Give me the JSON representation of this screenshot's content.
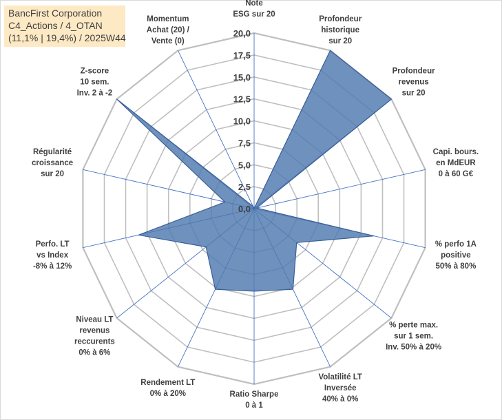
{
  "chart_data": {
    "type": "radar",
    "title": [
      "BancFirst Corporation",
      "C4_Actions / 4_OTAN",
      "(11,1% | 19,4%) / 2025W44"
    ],
    "rmin": 0,
    "rmax": 20,
    "ticks": [
      "0,0",
      "2,5",
      "5,0",
      "7,5",
      "10,0",
      "12,5",
      "15,0",
      "17,5",
      "20,0"
    ],
    "axes": [
      {
        "label": [
          "Note",
          "ESG sur 20"
        ],
        "value": 0
      },
      {
        "label": [
          "Profondeur",
          "historique",
          "sur 20"
        ],
        "value": 20
      },
      {
        "label": [
          "Profondeur",
          "revenus",
          "sur 20"
        ],
        "value": 20
      },
      {
        "label": [
          "Capi. bours.",
          "en MdEUR",
          "0 à 60 G€"
        ],
        "value": 0.3
      },
      {
        "label": [
          "% perfo 1A",
          "positive",
          "50% à 80%"
        ],
        "value": 14
      },
      {
        "label": [
          "% perte max.",
          "sur 1 sem.",
          "Inv. 50% à 20%"
        ],
        "value": 6.2
      },
      {
        "label": [
          "Volatilité LT",
          "Inversée",
          "40% à 0%"
        ],
        "value": 10.2
      },
      {
        "label": [
          "Ratio Sharpe",
          "0 à 1"
        ],
        "value": 9.4
      },
      {
        "label": [
          "Rendement LT",
          "0% à 20%"
        ],
        "value": 10.2
      },
      {
        "label": [
          "Niveau LT",
          "revenus",
          "reccurents",
          "0% à 6%"
        ],
        "value": 7
      },
      {
        "label": [
          "Perfo. LT",
          "vs Index",
          "-8% à 12%"
        ],
        "value": 13.5
      },
      {
        "label": [
          "Régularité",
          "croissance",
          "sur 20"
        ],
        "value": 3.4
      },
      {
        "label": [
          "Z-score",
          "10 sem.",
          "Inv. 2 à -2"
        ],
        "value": 20
      },
      {
        "label": [
          "Momentum",
          "Achat (20) /",
          "Vente (0)"
        ],
        "value": 0.3
      }
    ],
    "colors": {
      "fill": "#4f79b0",
      "stroke": "#3a5f96",
      "grid": "#bfbfbf",
      "spoke": "#4472c4"
    }
  }
}
